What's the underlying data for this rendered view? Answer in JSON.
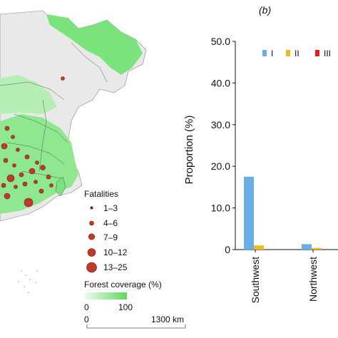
{
  "map_panel": {
    "legend_title": "Fatalities",
    "fatality_classes": [
      "1–3",
      "4–6",
      "7–9",
      "10–12",
      "13–25"
    ],
    "forest_legend_title": "Forest coverage (%)",
    "forest_min": "0",
    "forest_max": "100",
    "scale_zero": "0",
    "scale_max": "1300 km",
    "colors": {
      "forest": "#7be37b",
      "marker_fill": "#c0392b",
      "marker_stroke": "#6b1b12",
      "land": "#eeeeee",
      "border": "#555555"
    }
  },
  "chart_data": {
    "type": "bar",
    "panel_label": "(b)",
    "ylabel": "Proportion (%)",
    "xlabel": "",
    "ylim": [
      0,
      50
    ],
    "yticks": [
      "0",
      "10.0",
      "20.0",
      "30.0",
      "40.0",
      "50.0"
    ],
    "categories": [
      "Southwest",
      "Northwest"
    ],
    "series": [
      {
        "name": "I",
        "color": "#6aaee8",
        "values": [
          17.5,
          1.3
        ]
      },
      {
        "name": "II",
        "color": "#f2b81f",
        "values": [
          1.0,
          0.4
        ]
      },
      {
        "name": "III",
        "color": "#d9231f",
        "values": [
          0.0,
          0.0
        ]
      }
    ],
    "legend_position": "top-right",
    "grid": false
  }
}
